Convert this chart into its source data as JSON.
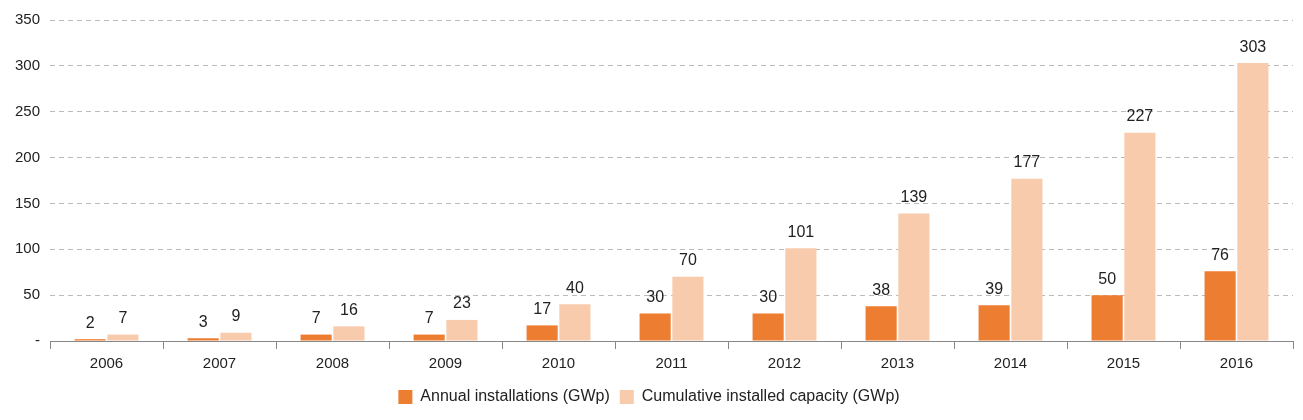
{
  "chart_data": {
    "type": "bar",
    "categories": [
      "2006",
      "2007",
      "2008",
      "2009",
      "2010",
      "2011",
      "2012",
      "2013",
      "2014",
      "2015",
      "2016"
    ],
    "series": [
      {
        "name": "Annual installations (GWp)",
        "color": "#ed7d31",
        "values": [
          2,
          3,
          7,
          7,
          17,
          30,
          30,
          38,
          39,
          50,
          76
        ]
      },
      {
        "name": "Cumulative installed capacity (GWp)",
        "color": "#f8cbad",
        "values": [
          7,
          9,
          16,
          23,
          40,
          70,
          101,
          139,
          177,
          227,
          303
        ]
      }
    ],
    "ylim": [
      0,
      350
    ],
    "yticks": [
      {
        "value": 0,
        "label": "-"
      },
      50,
      100,
      150,
      200,
      250,
      300,
      350
    ],
    "grid": "y",
    "legend": "bottom",
    "data_labels": true
  }
}
